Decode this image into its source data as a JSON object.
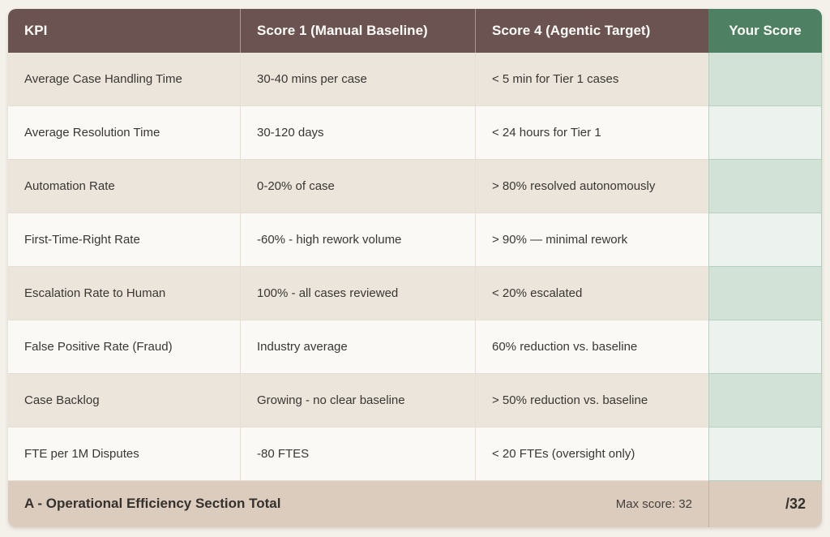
{
  "table": {
    "columns": [
      "KPI",
      "Score 1 (Manual Baseline)",
      "Score 4 (Agentic Target)",
      "Your Score"
    ]
  },
  "rows": [
    {
      "kpi": "Average Case Handling Time",
      "score1": "30-40 mins per case",
      "score4": "< 5 min for Tier 1 cases",
      "your_score": ""
    },
    {
      "kpi": "Average Resolution Time",
      "score1": "30-120 days",
      "score4": "< 24 hours for Tier 1",
      "your_score": ""
    },
    {
      "kpi": "Automation Rate",
      "score1": "0-20% of case",
      "score4": "> 80% resolved autonomously",
      "your_score": ""
    },
    {
      "kpi": "First-Time-Right Rate",
      "score1": "-60% - high rework volume",
      "score4": "> 90% — minimal rework",
      "your_score": ""
    },
    {
      "kpi": "Escalation Rate to Human",
      "score1": "100% - all cases reviewed",
      "score4": "< 20% escalated",
      "your_score": ""
    },
    {
      "kpi": "False Positive Rate (Fraud)",
      "score1": "Industry average",
      "score4": "60% reduction vs. baseline",
      "your_score": ""
    },
    {
      "kpi": "Case Backlog",
      "score1": "Growing - no clear baseline",
      "score4": "> 50% reduction vs. baseline",
      "your_score": ""
    },
    {
      "kpi": "FTE per 1M Disputes",
      "score1": "-80 FTES",
      "score4": "< 20 FTEs (oversight only)",
      "your_score": ""
    }
  ],
  "footer": {
    "label": "A - Operational Efficiency Section Total",
    "max_score": "Max score: 32",
    "score_display": "/32"
  },
  "colors": {
    "header_brown": "#6b5351",
    "header_green": "#4e8163",
    "row_beige": "#ebe5db",
    "row_white": "#faf9f6",
    "score_cell_dark": "#d2e2d7",
    "score_cell_light": "#ecf2ed",
    "score_cell_border": "#b5cfc1",
    "footer_tan": "#dbccbe",
    "text_dark": "#3a3633",
    "header_text": "#ffffff"
  }
}
